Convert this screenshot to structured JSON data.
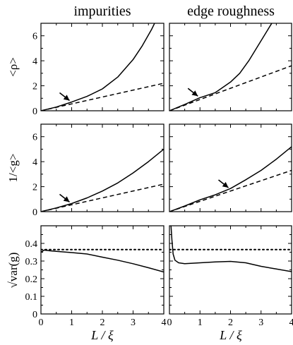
{
  "chart_data": [
    {
      "type": "line",
      "column_title": "impurities",
      "ylabel": "<ρ>",
      "xlabel": "",
      "xlim": [
        0,
        4
      ],
      "ylim": [
        0,
        7
      ],
      "xticks": [
        0,
        1,
        2,
        3,
        4
      ],
      "yticks": [
        0,
        2,
        4,
        6
      ],
      "grid": false,
      "series": [
        {
          "style": "solid",
          "x": [
            0,
            0.5,
            1.0,
            1.5,
            2.0,
            2.5,
            3.0,
            3.3,
            3.6,
            3.8,
            4.0
          ],
          "y": [
            0,
            0.3,
            0.7,
            1.15,
            1.75,
            2.7,
            4.1,
            5.2,
            6.5,
            7.5,
            8.6
          ]
        },
        {
          "style": "dashed",
          "x": [
            0,
            4
          ],
          "y": [
            0,
            2.2
          ]
        }
      ],
      "annotations": [
        {
          "type": "arrow",
          "x": 1.0,
          "y": 0.65
        }
      ]
    },
    {
      "type": "line",
      "column_title": "edge roughness",
      "ylabel": "",
      "xlabel": "",
      "xlim": [
        0,
        4
      ],
      "ylim": [
        0,
        7
      ],
      "xticks": [
        0,
        1,
        2,
        3,
        4
      ],
      "yticks": [
        0,
        2,
        4,
        6
      ],
      "grid": false,
      "series": [
        {
          "style": "solid",
          "x": [
            0,
            0.5,
            1.0,
            1.5,
            2.0,
            2.3,
            2.6,
            2.9,
            3.2,
            3.5
          ],
          "y": [
            0,
            0.5,
            1.05,
            1.45,
            2.3,
            3.0,
            4.0,
            5.2,
            6.4,
            7.6
          ]
        },
        {
          "style": "dashed",
          "x": [
            0,
            4
          ],
          "y": [
            0,
            3.6
          ]
        }
      ],
      "annotations": [
        {
          "type": "arrow",
          "x": 1.0,
          "y": 1.0
        }
      ]
    },
    {
      "type": "line",
      "column_title": "",
      "ylabel": "1/<g>",
      "xlabel": "",
      "xlim": [
        0,
        4
      ],
      "ylim": [
        0,
        7
      ],
      "xticks": [
        0,
        1,
        2,
        3,
        4
      ],
      "yticks": [
        0,
        2,
        4,
        6
      ],
      "grid": false,
      "series": [
        {
          "style": "solid",
          "x": [
            0,
            0.5,
            1.0,
            1.5,
            2.0,
            2.5,
            3.0,
            3.5,
            4.0
          ],
          "y": [
            0,
            0.3,
            0.65,
            1.1,
            1.65,
            2.3,
            3.1,
            4.0,
            5.0
          ]
        },
        {
          "style": "dashed",
          "x": [
            0,
            4
          ],
          "y": [
            0,
            2.2
          ]
        }
      ],
      "annotations": [
        {
          "type": "arrow",
          "x": 1.0,
          "y": 0.6
        }
      ]
    },
    {
      "type": "line",
      "column_title": "",
      "ylabel": "",
      "xlabel": "",
      "xlim": [
        0,
        4
      ],
      "ylim": [
        0,
        7
      ],
      "xticks": [
        0,
        1,
        2,
        3,
        4
      ],
      "yticks": [
        0,
        2,
        4,
        6
      ],
      "grid": false,
      "series": [
        {
          "style": "solid",
          "x": [
            0,
            0.5,
            1.0,
            1.5,
            2.0,
            2.5,
            3.0,
            3.5,
            4.0
          ],
          "y": [
            0,
            0.45,
            0.95,
            1.35,
            1.85,
            2.55,
            3.3,
            4.2,
            5.2
          ]
        },
        {
          "style": "dashed",
          "x": [
            0,
            4
          ],
          "y": [
            0,
            3.3
          ]
        }
      ],
      "annotations": [
        {
          "type": "arrow",
          "x": 2.0,
          "y": 1.75
        }
      ]
    },
    {
      "type": "line",
      "column_title": "",
      "ylabel": "√var(g)",
      "xlabel": "L / ξ",
      "xlim": [
        0,
        4
      ],
      "ylim": [
        0,
        0.5
      ],
      "xticks": [
        0,
        1,
        2,
        3,
        4
      ],
      "yticks": [
        0,
        0.1,
        0.2,
        0.3,
        0.4
      ],
      "grid": false,
      "series": [
        {
          "style": "solid",
          "x": [
            0,
            0.1,
            0.3,
            0.5,
            1.0,
            1.5,
            2.0,
            2.5,
            3.0,
            3.5,
            4.0
          ],
          "y": [
            0.35,
            0.362,
            0.358,
            0.355,
            0.348,
            0.34,
            0.322,
            0.305,
            0.285,
            0.262,
            0.238
          ]
        },
        {
          "style": "dotted",
          "x": [
            0,
            4
          ],
          "y": [
            0.365,
            0.365
          ]
        }
      ],
      "annotations": []
    },
    {
      "type": "line",
      "column_title": "",
      "ylabel": "",
      "xlabel": "L / ξ",
      "xlim": [
        0,
        4
      ],
      "ylim": [
        0,
        0.5
      ],
      "xticks": [
        0,
        1,
        2,
        3,
        4
      ],
      "yticks": [
        0,
        0.1,
        0.2,
        0.3,
        0.4
      ],
      "grid": false,
      "series": [
        {
          "style": "solid",
          "x": [
            0.05,
            0.08,
            0.12,
            0.18,
            0.3,
            0.5,
            1.0,
            1.5,
            2.0,
            2.5,
            3.0,
            3.5,
            4.0
          ],
          "y": [
            0.5,
            0.42,
            0.34,
            0.305,
            0.29,
            0.285,
            0.29,
            0.295,
            0.298,
            0.29,
            0.27,
            0.255,
            0.24
          ]
        },
        {
          "style": "dotted",
          "x": [
            0,
            4
          ],
          "y": [
            0.365,
            0.365
          ]
        }
      ],
      "annotations": []
    }
  ]
}
